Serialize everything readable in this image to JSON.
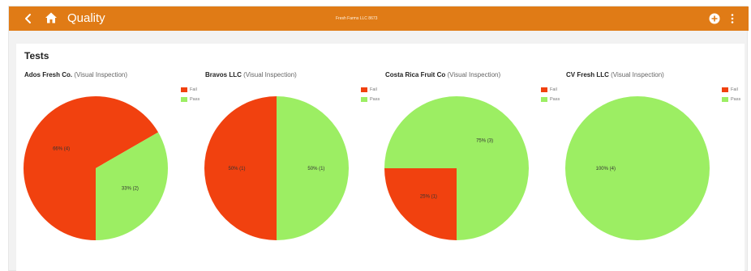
{
  "header": {
    "title": "Quality",
    "center_label": "Fresh Farms LLC 8673",
    "color": "#e07b16"
  },
  "icons": {
    "back": "back-arrow-icon",
    "home": "home-icon",
    "add": "add-circle-icon",
    "menu": "more-vert-icon"
  },
  "main": {
    "heading": "Tests"
  },
  "colors": {
    "fail": "#f1410f",
    "pass": "#9cee63"
  },
  "legend": {
    "fail": "Fail",
    "pass": "Pass"
  },
  "chart_data": [
    {
      "type": "pie",
      "company": "Ados Fresh Co.",
      "subtitle": "(Visual Inspection)",
      "legend_position": "top-right",
      "slices": [
        {
          "name": "Fail",
          "value": 66,
          "label": "66% (4)"
        },
        {
          "name": "Pass",
          "value": 33,
          "label": "33% (2)"
        }
      ]
    },
    {
      "type": "pie",
      "company": "Bravos LLC",
      "subtitle": "(Visual Inspection)",
      "legend_position": "top-right",
      "slices": [
        {
          "name": "Fail",
          "value": 50,
          "label": "50% (1)"
        },
        {
          "name": "Pass",
          "value": 50,
          "label": "50% (1)"
        }
      ]
    },
    {
      "type": "pie",
      "company": "Costa Rica Fruit Co",
      "subtitle": "(Visual Inspection)",
      "legend_position": "top-right",
      "slices": [
        {
          "name": "Fail",
          "value": 25,
          "label": "25% (1)"
        },
        {
          "name": "Pass",
          "value": 75,
          "label": "75% (3)"
        }
      ]
    },
    {
      "type": "pie",
      "company": "CV Fresh LLC",
      "subtitle": "(Visual Inspection)",
      "legend_position": "top-right",
      "slices": [
        {
          "name": "Fail",
          "value": 0,
          "label": ""
        },
        {
          "name": "Pass",
          "value": 100,
          "label": "100% (4)"
        }
      ]
    }
  ]
}
